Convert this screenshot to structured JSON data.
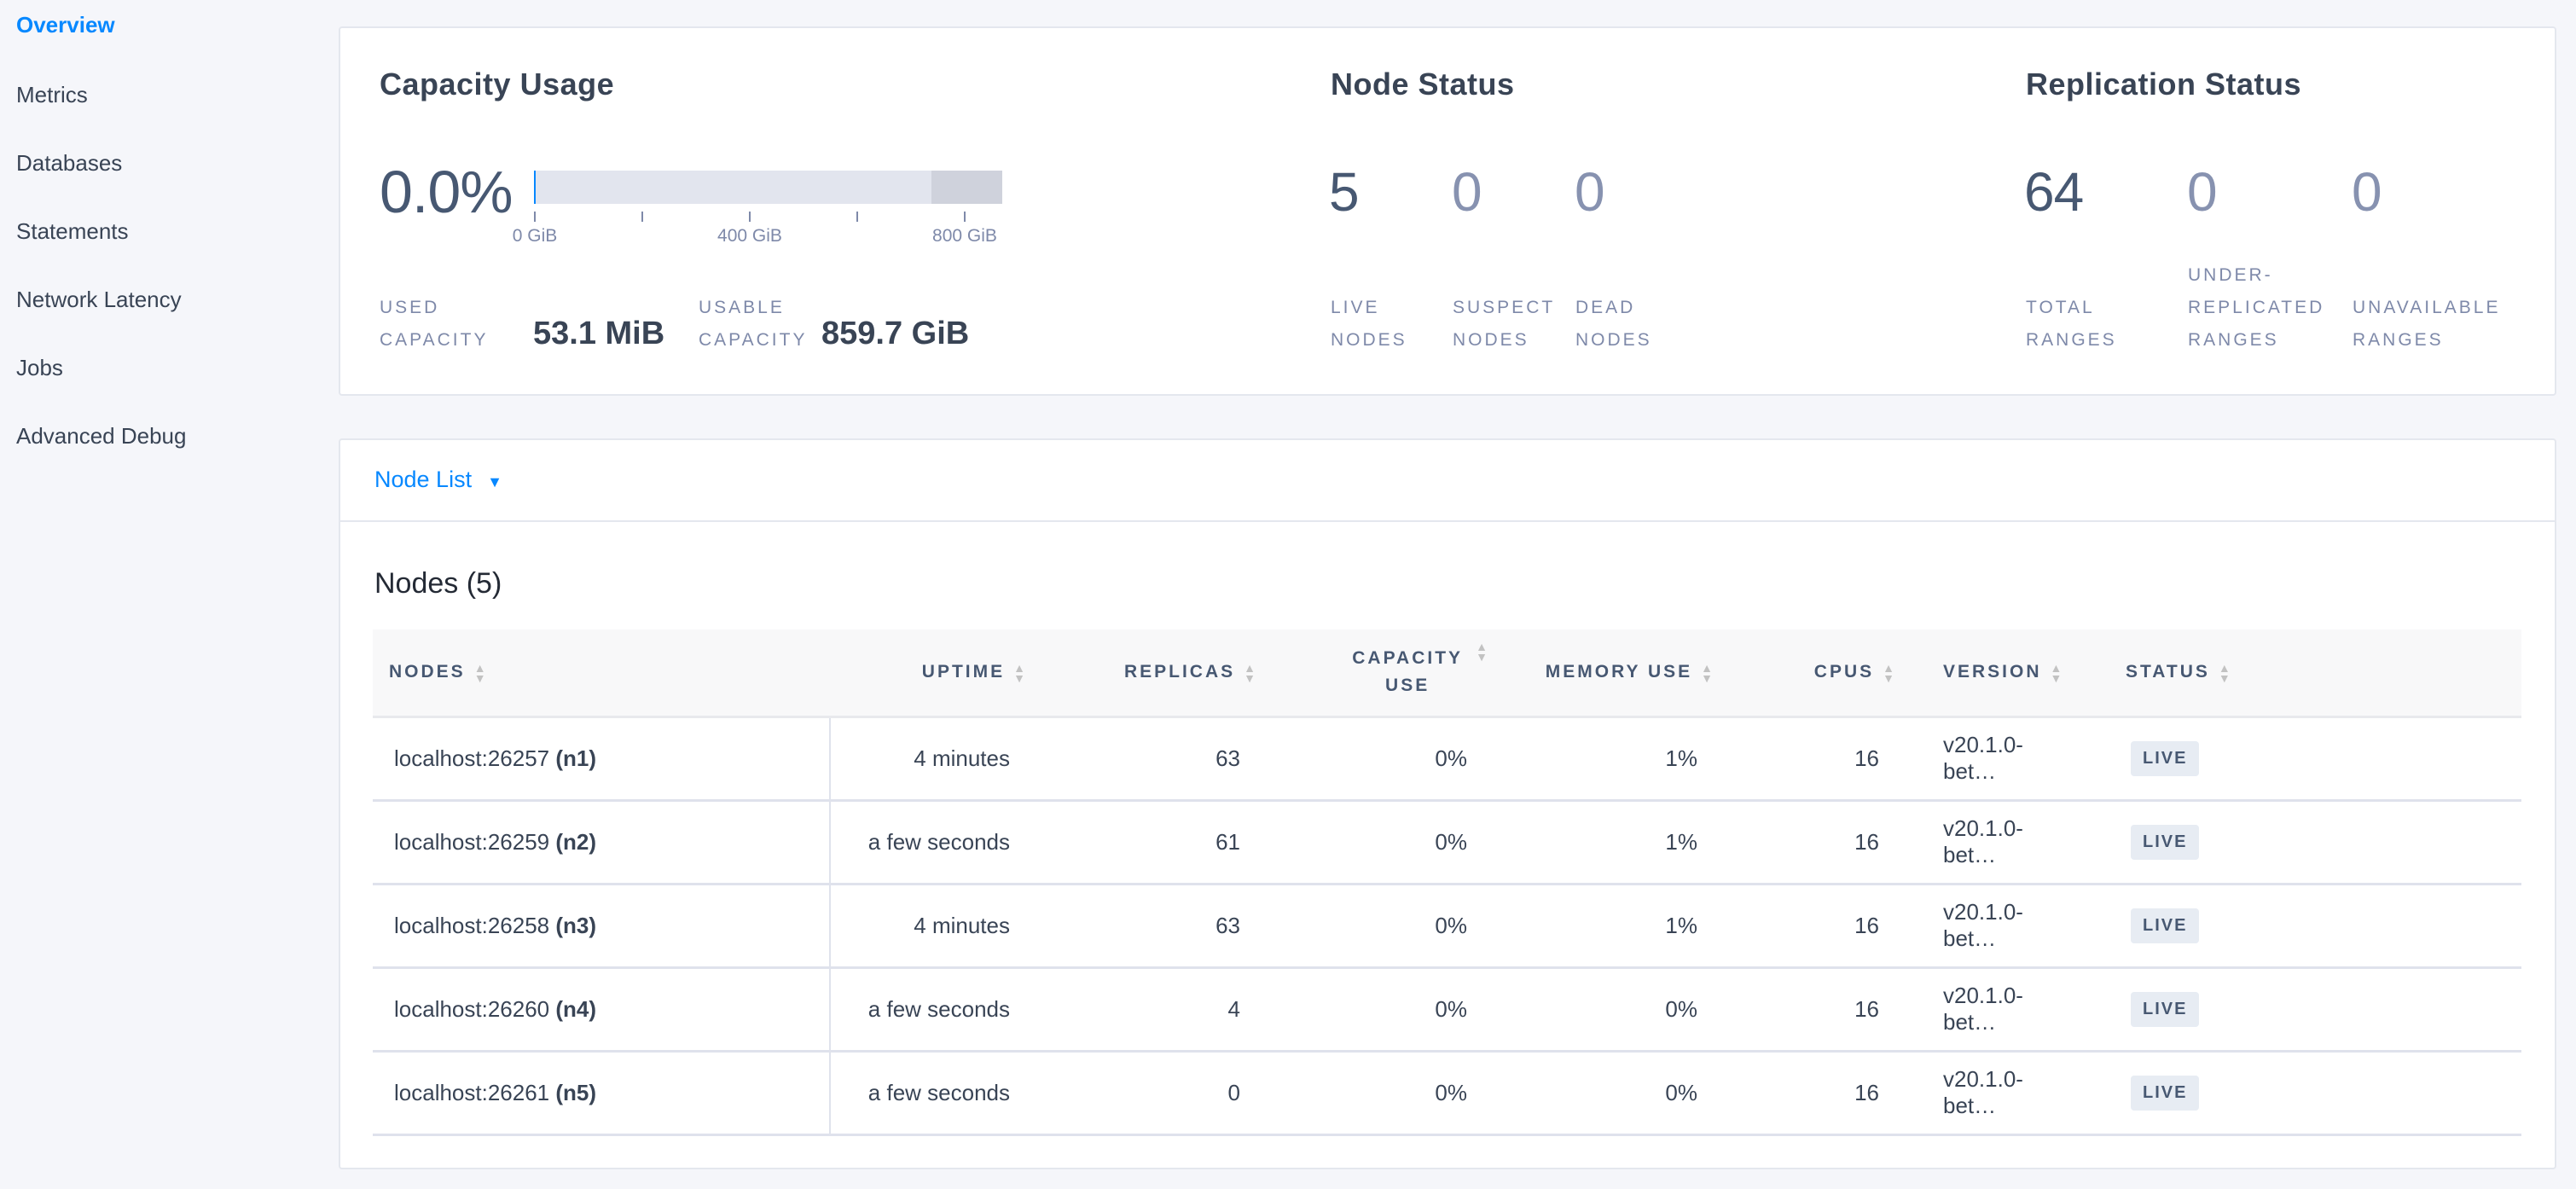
{
  "sidebar": {
    "items": [
      {
        "label": "Overview",
        "active": true
      },
      {
        "label": "Metrics"
      },
      {
        "label": "Databases"
      },
      {
        "label": "Statements"
      },
      {
        "label": "Network Latency"
      },
      {
        "label": "Jobs"
      },
      {
        "label": "Advanced Debug"
      }
    ]
  },
  "capacity": {
    "title": "Capacity Usage",
    "percent": "0.0%",
    "used_fraction": 0.0,
    "ticks": [
      "0 GiB",
      "400 GiB",
      "800 GiB"
    ],
    "used_label": "Used capacity",
    "used_value": "53.1 MiB",
    "usable_label": "Usable capacity",
    "usable_value": "859.7 GiB"
  },
  "node_status": {
    "title": "Node Status",
    "live": "5",
    "suspect": "0",
    "dead": "0",
    "live_label": "Live nodes",
    "suspect_label": "Suspect nodes",
    "dead_label": "Dead nodes"
  },
  "replication": {
    "title": "Replication Status",
    "total": "64",
    "under": "0",
    "unavailable": "0",
    "total_label": "Total ranges",
    "under_label": "Under-replicated ranges",
    "unavailable_label": "Unavailable ranges"
  },
  "node_list": {
    "dropdown": "Node List",
    "heading": "Nodes (5)",
    "columns": [
      "NODES",
      "UPTIME",
      "REPLICAS",
      "CAPACITY USE",
      "MEMORY USE",
      "CPUS",
      "VERSION",
      "STATUS"
    ],
    "rows": [
      {
        "address": "localhost:26257",
        "id": "(n1)",
        "uptime": "4 minutes",
        "replicas": "63",
        "capacity": "0%",
        "memory": "1%",
        "cpus": "16",
        "version": "v20.1.0-bet…",
        "status": "LIVE"
      },
      {
        "address": "localhost:26259",
        "id": "(n2)",
        "uptime": "a few seconds",
        "replicas": "61",
        "capacity": "0%",
        "memory": "1%",
        "cpus": "16",
        "version": "v20.1.0-bet…",
        "status": "LIVE"
      },
      {
        "address": "localhost:26258",
        "id": "(n3)",
        "uptime": "4 minutes",
        "replicas": "63",
        "capacity": "0%",
        "memory": "1%",
        "cpus": "16",
        "version": "v20.1.0-bet…",
        "status": "LIVE"
      },
      {
        "address": "localhost:26260",
        "id": "(n4)",
        "uptime": "a few seconds",
        "replicas": "4",
        "capacity": "0%",
        "memory": "0%",
        "cpus": "16",
        "version": "v20.1.0-bet…",
        "status": "LIVE"
      },
      {
        "address": "localhost:26261",
        "id": "(n5)",
        "uptime": "a few seconds",
        "replicas": "0",
        "capacity": "0%",
        "memory": "0%",
        "cpus": "16",
        "version": "v20.1.0-bet…",
        "status": "LIVE"
      }
    ]
  }
}
